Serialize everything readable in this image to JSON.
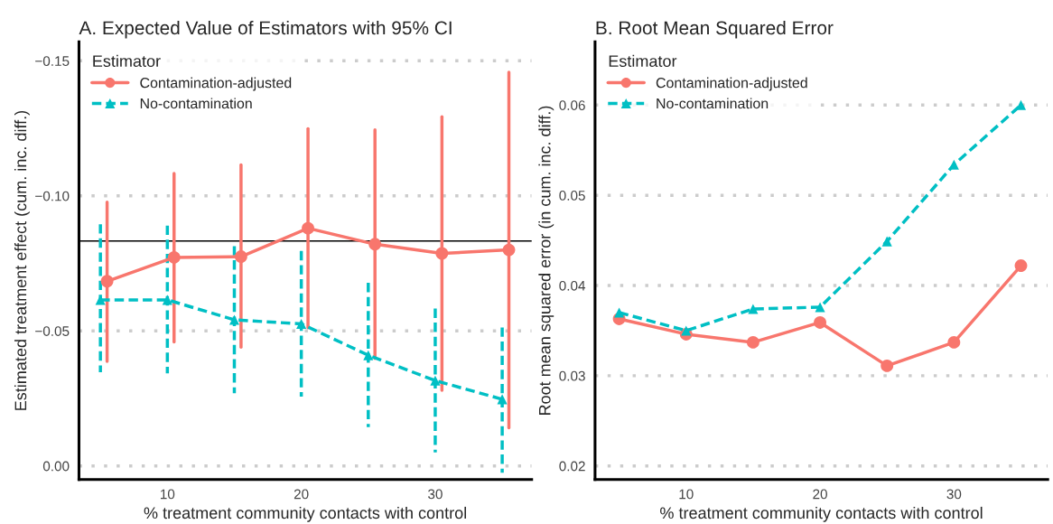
{
  "chart_data": [
    {
      "type": "line",
      "title": "A. Expected Value of Estimators with 95% CI",
      "xlabel": "% treatment community contacts with control",
      "ylabel": "Estimated treatment effect (cum. inc. diff.)",
      "legend_title": "Estimator",
      "legend": "top left",
      "grid": "y",
      "xlim": [
        3.4,
        37.2
      ],
      "xticks": [
        10,
        20,
        30
      ],
      "ylim": [
        0.005,
        -0.157
      ],
      "yticks": [
        {
          "value": -0.15,
          "label": "−0.15"
        },
        {
          "value": -0.1,
          "label": "−0.10"
        },
        {
          "value": -0.05,
          "label": "−0.05"
        },
        {
          "value": 0.0,
          "label": "0.00"
        }
      ],
      "ref_lines": [
        {
          "axis": "y",
          "value": -0.0833,
          "color": "#000000"
        }
      ],
      "series": [
        {
          "name": "Contamination-adjusted",
          "color": "#f8766d",
          "marker": "circle",
          "line_style": "solid",
          "x": [
            5.5,
            10.5,
            15.5,
            20.5,
            25.5,
            30.5,
            35.5
          ],
          "values": [
            -0.0684,
            -0.0772,
            -0.0775,
            -0.088,
            -0.0821,
            -0.0787,
            -0.08
          ],
          "errors": [
            [
              -0.0977,
              -0.0387
            ],
            [
              -0.1083,
              -0.0459
            ],
            [
              -0.1115,
              -0.044
            ],
            [
              -0.1249,
              -0.0512
            ],
            [
              -0.1244,
              -0.0398
            ],
            [
              -0.1293,
              -0.028
            ],
            [
              -0.1458,
              -0.0141
            ]
          ]
        },
        {
          "name": "No-contamination",
          "color": "#00bfc4",
          "marker": "triangle",
          "line_style": "dashed",
          "x": [
            5,
            10,
            15,
            20,
            25,
            30,
            35
          ],
          "values": [
            -0.0615,
            -0.0615,
            -0.0541,
            -0.0526,
            -0.041,
            -0.0316,
            -0.0247
          ],
          "errors": [
            [
              -0.0895,
              -0.0347
            ],
            [
              -0.089,
              -0.0343
            ],
            [
              -0.0814,
              -0.0269
            ],
            [
              -0.0796,
              -0.0257
            ],
            [
              -0.0678,
              -0.0144
            ],
            [
              -0.0583,
              -0.005
            ],
            [
              -0.0513,
              0.0025
            ]
          ]
        }
      ]
    },
    {
      "type": "line",
      "title": "B. Root Mean Squared Error",
      "xlabel": "% treatment community contacts with control",
      "ylabel": "Root mean squared error (in cum. inc. diff.)",
      "legend_title": "Estimator",
      "legend": "top left",
      "grid": "y",
      "xlim": [
        3.2,
        37.0
      ],
      "xticks": [
        10,
        20,
        30
      ],
      "ylim": [
        0.0185,
        0.067
      ],
      "yticks": [
        {
          "value": 0.02,
          "label": "0.02"
        },
        {
          "value": 0.03,
          "label": "0.03"
        },
        {
          "value": 0.04,
          "label": "0.04"
        },
        {
          "value": 0.05,
          "label": "0.05"
        },
        {
          "value": 0.06,
          "label": "0.06"
        }
      ],
      "series": [
        {
          "name": "Contamination-adjusted",
          "color": "#f8766d",
          "marker": "circle",
          "line_style": "solid",
          "x": [
            5,
            10,
            15,
            20,
            25,
            30,
            35
          ],
          "values": [
            0.0363,
            0.0346,
            0.0337,
            0.0359,
            0.0311,
            0.0337,
            0.0422
          ]
        },
        {
          "name": "No-contamination",
          "color": "#00bfc4",
          "marker": "triangle",
          "line_style": "dashed",
          "x": [
            5,
            10,
            15,
            20,
            25,
            30,
            35
          ],
          "values": [
            0.037,
            0.035,
            0.0374,
            0.0376,
            0.0449,
            0.0534,
            0.06
          ]
        }
      ]
    }
  ]
}
